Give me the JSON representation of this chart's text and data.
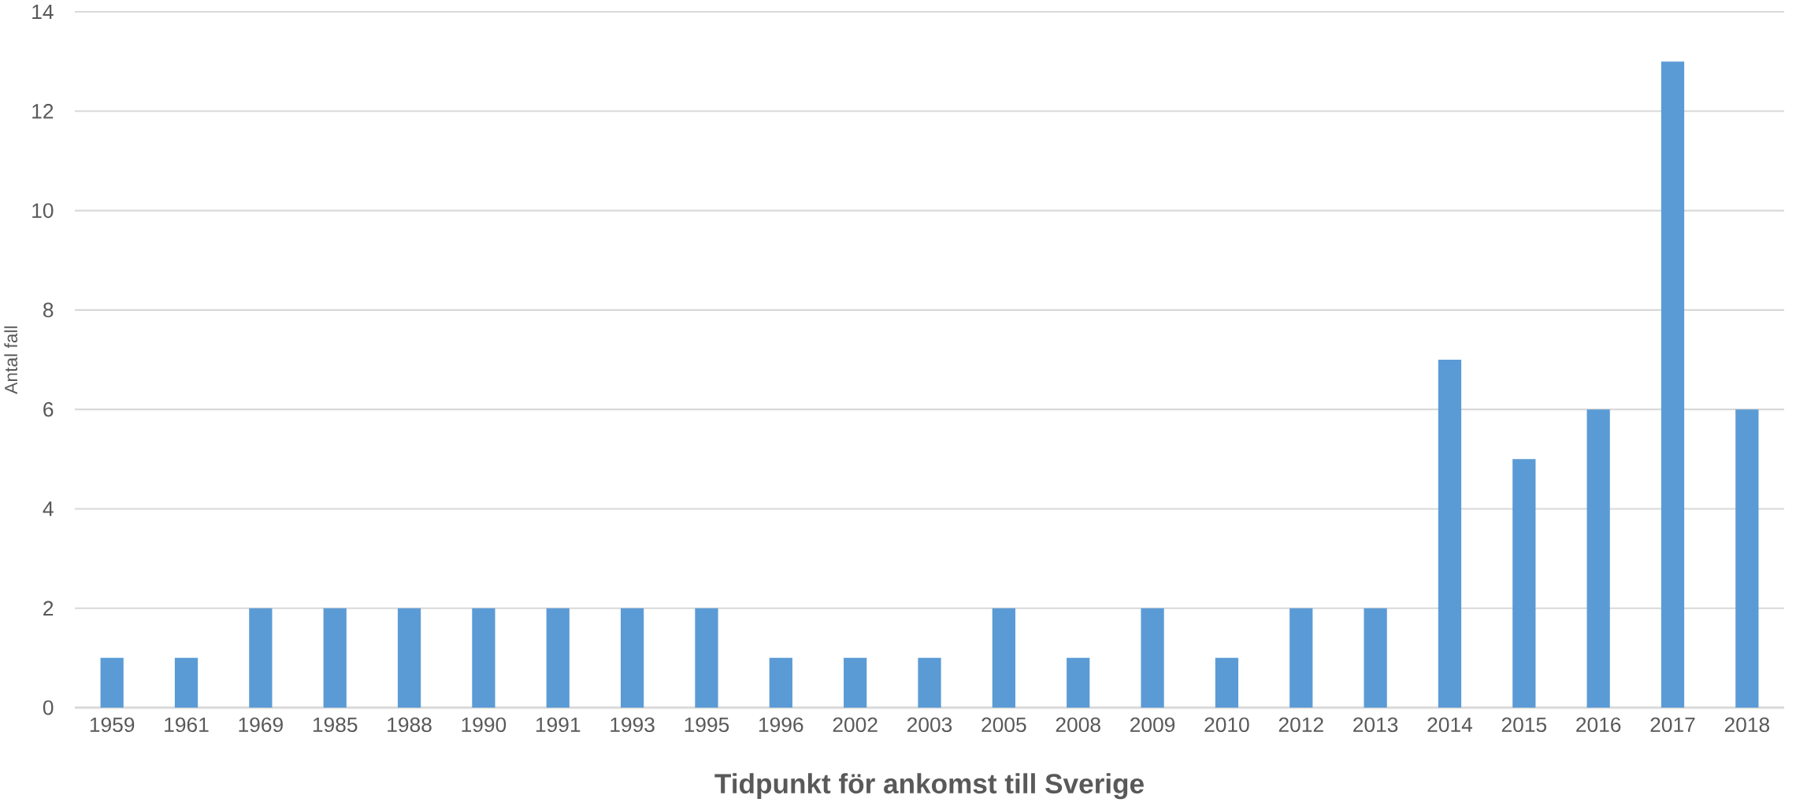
{
  "chart_data": {
    "type": "bar",
    "xlabel": "Tidpunkt för ankomst till Sverige",
    "ylabel": "Antal fall",
    "categories": [
      "1959",
      "1961",
      "1969",
      "1985",
      "1988",
      "1990",
      "1991",
      "1993",
      "1995",
      "1996",
      "2002",
      "2003",
      "2005",
      "2008",
      "2009",
      "2010",
      "2012",
      "2013",
      "2014",
      "2015",
      "2016",
      "2017",
      "2018"
    ],
    "values": [
      1,
      1,
      2,
      2,
      2,
      2,
      2,
      2,
      2,
      1,
      1,
      1,
      2,
      1,
      2,
      1,
      2,
      2,
      7,
      5,
      6,
      13,
      6
    ],
    "color": "#5b9bd5",
    "ylim": [
      0,
      14
    ],
    "yticks": [
      0,
      2,
      4,
      6,
      8,
      10,
      12,
      14
    ],
    "grid": "y"
  }
}
